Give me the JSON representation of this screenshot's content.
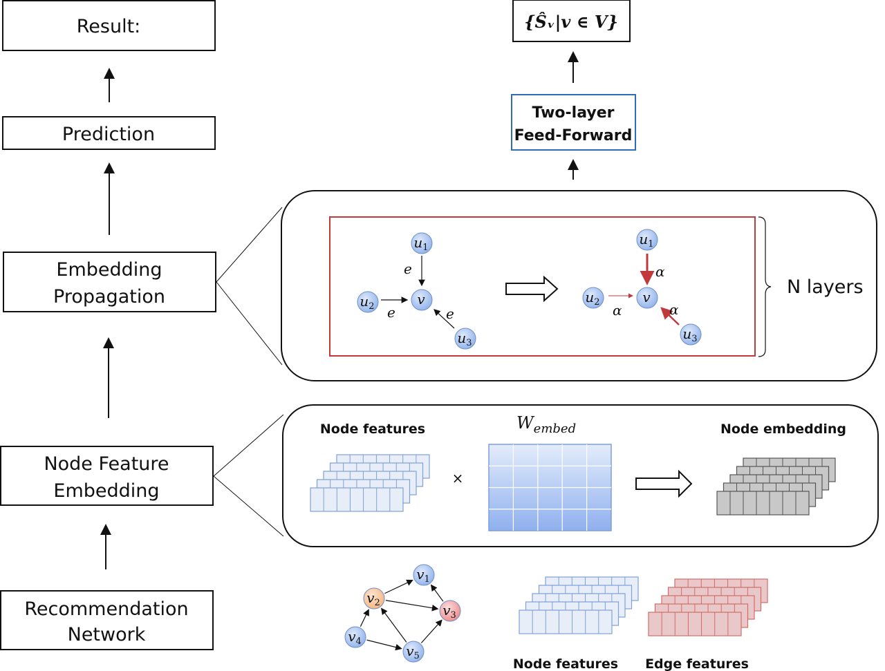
{
  "left_pipeline": {
    "result": "Result:",
    "prediction": "Prediction",
    "embedding_propagation": [
      "Embedding",
      "Propagation"
    ],
    "node_feature_embedding": [
      "Node Feature",
      "Embedding"
    ],
    "recommendation_network": [
      "Recommendation",
      "Network"
    ]
  },
  "right_pipeline": {
    "output_set": "{Ŝᵥ|v ∈ V}",
    "feed_forward": [
      "Two-layer",
      "Feed-Forward"
    ],
    "n_layers": "N layers",
    "propagation": {
      "before_nodes": [
        "u1",
        "u2",
        "u3",
        "v"
      ],
      "edge_labels": [
        "e1",
        "e2",
        "e3"
      ],
      "after_nodes": [
        "u1",
        "u2",
        "u3",
        "v"
      ],
      "attention_labels": [
        "α1",
        "α2",
        "α3"
      ]
    },
    "embedding": {
      "node_features_label": "Node features",
      "weight_label": "W",
      "weight_subscript": "embed",
      "times": "×",
      "node_embedding_label": "Node embedding"
    },
    "input": {
      "graph_nodes": [
        "v1",
        "v2",
        "v3",
        "v4",
        "v5"
      ],
      "node_features_label": "Node features",
      "edge_features_label": "Edge features"
    }
  },
  "colors": {
    "node_blue": "#a9c4f0",
    "node_orange": "#f9c9a0",
    "node_red": "#f2a0a0",
    "attention_red": "#c0393b",
    "box_blue": "#2e6db4",
    "feature_blue": "#7f9fd6",
    "feature_red": "#d46a6a",
    "embedding_gray": "#9a9a9a"
  }
}
